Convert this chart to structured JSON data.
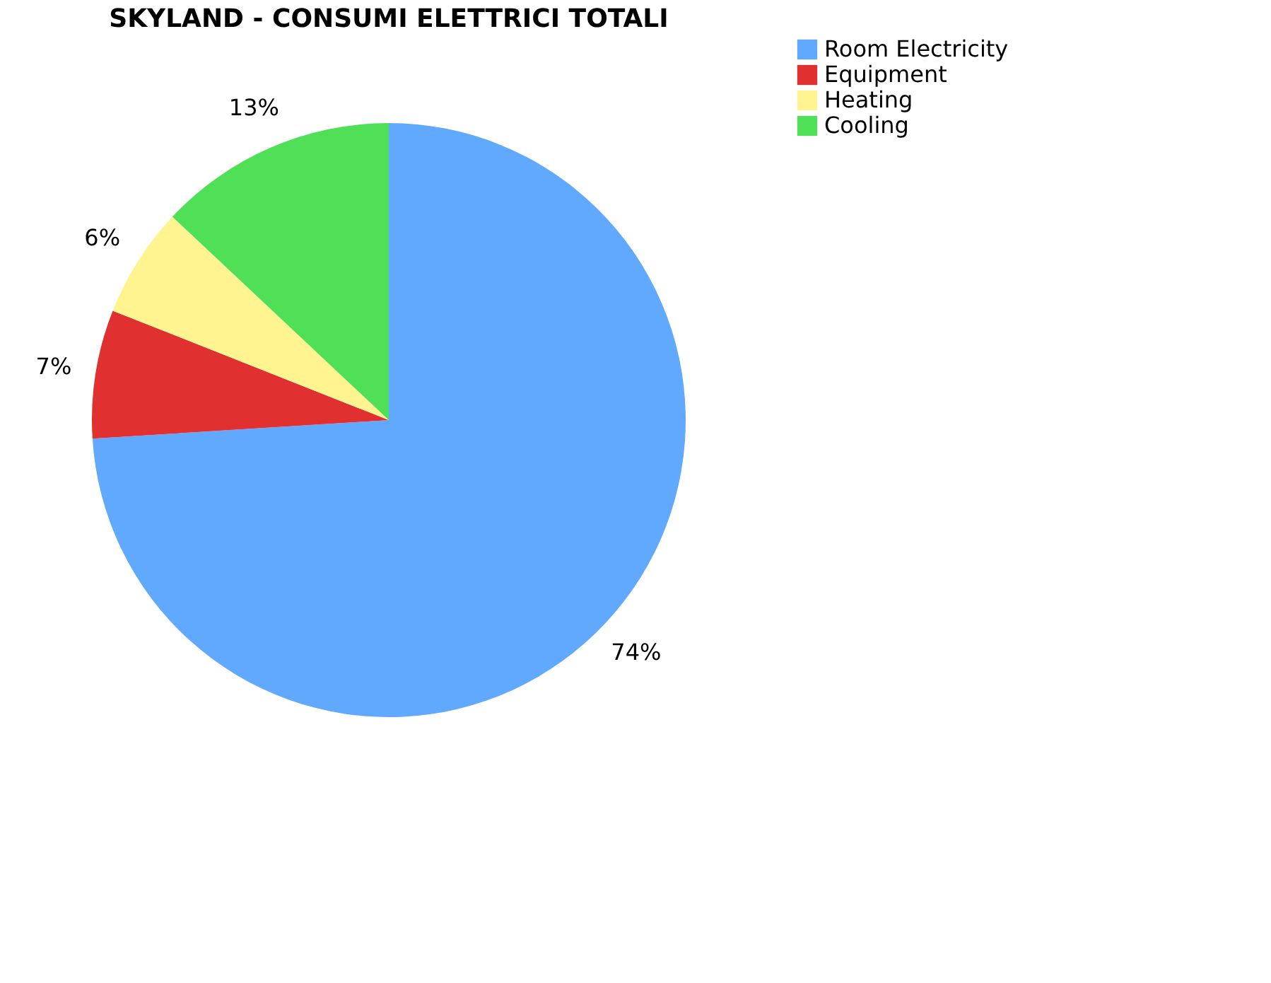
{
  "chart_data": {
    "type": "pie",
    "title": "SKYLAND - CONSUMI ELETTRICI TOTALI",
    "categories": [
      "Room Electricity",
      "Equipment",
      "Heating",
      "Cooling"
    ],
    "values": [
      74,
      7,
      6,
      13
    ],
    "colors": [
      "#61a8ff",
      "#e03030",
      "#fff48f",
      "#4fe058"
    ],
    "value_labels": [
      "74%",
      "7%",
      "6%",
      "13%"
    ],
    "legend": "right"
  }
}
